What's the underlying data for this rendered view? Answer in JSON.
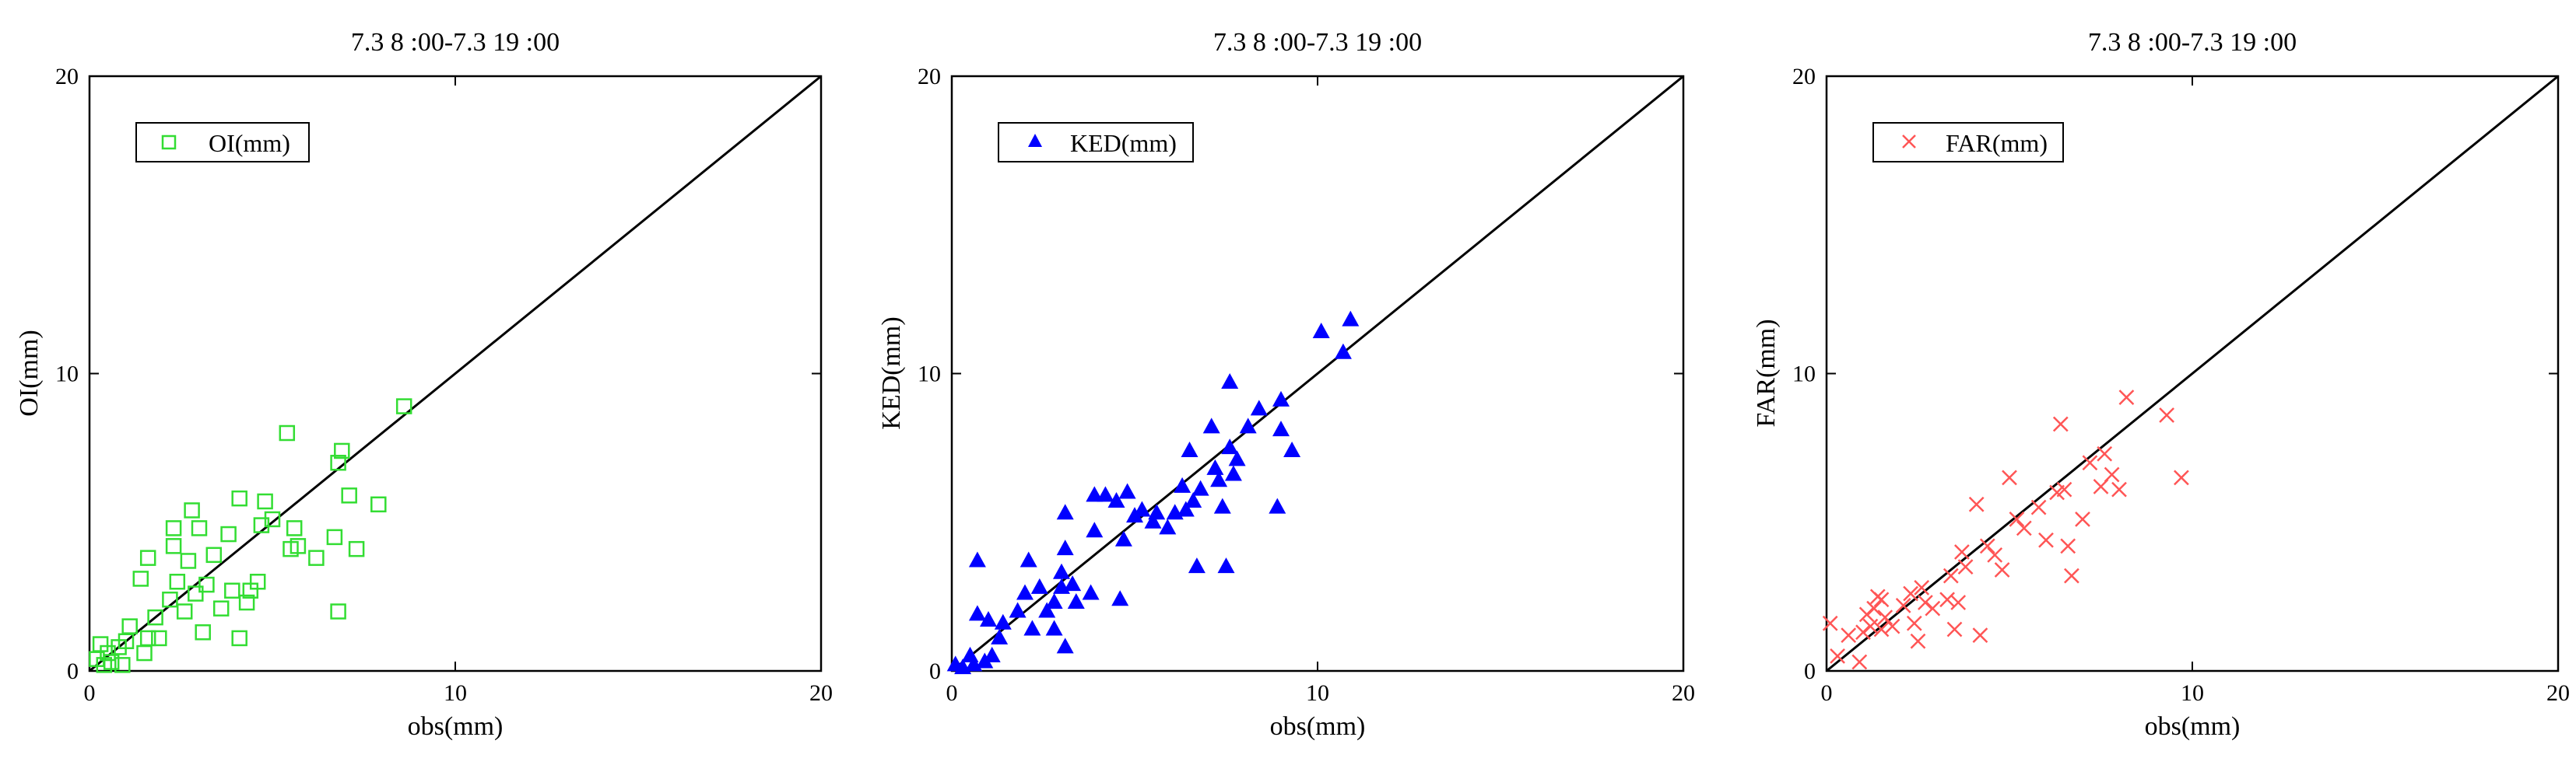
{
  "colors": {
    "axis": "#000000",
    "background": "#ffffff"
  },
  "chart_data": [
    {
      "type": "scatter",
      "title": "7.3 8 :00-7.3 19 :00",
      "xlabel": "obs(mm)",
      "ylabel": "OI(mm)",
      "xlim": [
        0,
        20
      ],
      "ylim": [
        0,
        20
      ],
      "xticks": [
        "0",
        "10",
        "20"
      ],
      "yticks": [
        "0",
        "10",
        "20"
      ],
      "reference_line": "1:1",
      "legend_position": "top-left",
      "series": [
        {
          "name": "OI(mm)",
          "marker": "open-square",
          "color": "#33dd33",
          "points": [
            [
              0.2,
              0.4
            ],
            [
              0.3,
              0.9
            ],
            [
              0.4,
              0.2
            ],
            [
              0.5,
              0.6
            ],
            [
              0.6,
              0.3
            ],
            [
              0.8,
              0.8
            ],
            [
              0.9,
              0.2
            ],
            [
              1.0,
              1.0
            ],
            [
              1.1,
              1.5
            ],
            [
              1.4,
              3.1
            ],
            [
              1.5,
              0.6
            ],
            [
              1.6,
              1.1
            ],
            [
              1.6,
              3.8
            ],
            [
              1.8,
              1.8
            ],
            [
              1.9,
              1.1
            ],
            [
              2.2,
              2.4
            ],
            [
              2.3,
              4.8
            ],
            [
              2.3,
              4.2
            ],
            [
              2.4,
              3.0
            ],
            [
              2.6,
              2.0
            ],
            [
              2.7,
              3.7
            ],
            [
              2.8,
              5.4
            ],
            [
              2.9,
              2.6
            ],
            [
              3.0,
              4.8
            ],
            [
              3.1,
              1.3
            ],
            [
              3.2,
              2.9
            ],
            [
              3.4,
              3.9
            ],
            [
              3.6,
              2.1
            ],
            [
              3.8,
              4.6
            ],
            [
              3.9,
              2.7
            ],
            [
              4.1,
              5.8
            ],
            [
              4.1,
              1.1
            ],
            [
              4.3,
              2.3
            ],
            [
              4.4,
              2.7
            ],
            [
              4.6,
              3.0
            ],
            [
              4.7,
              4.9
            ],
            [
              4.8,
              5.7
            ],
            [
              5.0,
              5.1
            ],
            [
              5.4,
              8.0
            ],
            [
              5.5,
              4.1
            ],
            [
              5.6,
              4.8
            ],
            [
              5.7,
              4.2
            ],
            [
              6.2,
              3.8
            ],
            [
              6.7,
              4.5
            ],
            [
              6.8,
              2.0
            ],
            [
              6.9,
              7.4
            ],
            [
              6.8,
              7.0
            ],
            [
              7.1,
              5.9
            ],
            [
              7.3,
              4.1
            ],
            [
              7.9,
              5.6
            ],
            [
              8.6,
              8.9
            ]
          ]
        }
      ]
    },
    {
      "type": "scatter",
      "title": "7.3 8 :00-7.3 19 :00",
      "xlabel": "obs(mm)",
      "ylabel": "KED(mm)",
      "xlim": [
        0,
        20
      ],
      "ylim": [
        0,
        20
      ],
      "xticks": [
        "0",
        "10",
        "20"
      ],
      "yticks": [
        "0",
        "10",
        "20"
      ],
      "reference_line": "1:1",
      "legend_position": "top-left",
      "series": [
        {
          "name": "KED(mm)",
          "marker": "filled-triangle",
          "color": "#0000ff",
          "points": [
            [
              0.1,
              0.2
            ],
            [
              0.3,
              0.1
            ],
            [
              0.5,
              0.5
            ],
            [
              0.6,
              0.2
            ],
            [
              0.7,
              1.9
            ],
            [
              0.7,
              3.7
            ],
            [
              0.9,
              0.3
            ],
            [
              1.0,
              1.7
            ],
            [
              1.1,
              0.5
            ],
            [
              1.3,
              1.1
            ],
            [
              1.4,
              1.6
            ],
            [
              1.8,
              2.0
            ],
            [
              2.0,
              2.6
            ],
            [
              2.1,
              3.7
            ],
            [
              2.2,
              1.4
            ],
            [
              2.4,
              2.8
            ],
            [
              2.6,
              2.0
            ],
            [
              2.8,
              1.4
            ],
            [
              2.8,
              2.3
            ],
            [
              3.0,
              2.8
            ],
            [
              3.0,
              3.3
            ],
            [
              3.1,
              4.1
            ],
            [
              3.1,
              5.3
            ],
            [
              3.1,
              0.8
            ],
            [
              3.3,
              2.9
            ],
            [
              3.4,
              2.3
            ],
            [
              3.8,
              2.6
            ],
            [
              3.9,
              4.7
            ],
            [
              3.9,
              5.9
            ],
            [
              4.2,
              5.9
            ],
            [
              4.5,
              5.7
            ],
            [
              4.6,
              2.4
            ],
            [
              4.7,
              4.4
            ],
            [
              4.8,
              6.0
            ],
            [
              5.0,
              5.2
            ],
            [
              5.2,
              5.4
            ],
            [
              5.5,
              5.0
            ],
            [
              5.6,
              5.3
            ],
            [
              5.9,
              4.8
            ],
            [
              6.1,
              5.3
            ],
            [
              6.3,
              6.2
            ],
            [
              6.4,
              5.4
            ],
            [
              6.5,
              7.4
            ],
            [
              6.6,
              5.7
            ],
            [
              6.7,
              3.5
            ],
            [
              6.8,
              6.1
            ],
            [
              7.1,
              8.2
            ],
            [
              7.2,
              6.8
            ],
            [
              7.3,
              6.4
            ],
            [
              7.4,
              5.5
            ],
            [
              7.5,
              3.5
            ],
            [
              7.6,
              7.5
            ],
            [
              7.6,
              9.7
            ],
            [
              7.7,
              6.6
            ],
            [
              7.8,
              7.1
            ],
            [
              8.1,
              8.2
            ],
            [
              8.4,
              8.8
            ],
            [
              8.9,
              5.5
            ],
            [
              9.0,
              8.1
            ],
            [
              9.0,
              9.1
            ],
            [
              9.3,
              7.4
            ],
            [
              10.1,
              11.4
            ],
            [
              10.7,
              10.7
            ],
            [
              10.9,
              11.8
            ]
          ]
        }
      ]
    },
    {
      "type": "scatter",
      "title": "7.3 8 :00-7.3 19 :00",
      "xlabel": "obs(mm)",
      "ylabel": "FAR(mm)",
      "xlim": [
        0,
        20
      ],
      "ylim": [
        0,
        20
      ],
      "xticks": [
        "0",
        "10",
        "20"
      ],
      "yticks": [
        "0",
        "10",
        "20"
      ],
      "reference_line": "1:1",
      "legend_position": "top-left",
      "series": [
        {
          "name": "FAR(mm)",
          "marker": "x",
          "color": "#ff5555",
          "points": [
            [
              0.1,
              1.6
            ],
            [
              0.3,
              0.5
            ],
            [
              0.6,
              1.2
            ],
            [
              0.9,
              0.3
            ],
            [
              1.0,
              1.3
            ],
            [
              1.1,
              1.9
            ],
            [
              1.2,
              1.5
            ],
            [
              1.3,
              2.1
            ],
            [
              1.4,
              2.5
            ],
            [
              1.5,
              2.4
            ],
            [
              1.5,
              1.4
            ],
            [
              1.6,
              1.8
            ],
            [
              1.8,
              1.5
            ],
            [
              2.1,
              2.2
            ],
            [
              2.3,
              2.6
            ],
            [
              2.4,
              1.6
            ],
            [
              2.5,
              1.0
            ],
            [
              2.6,
              2.8
            ],
            [
              2.7,
              2.3
            ],
            [
              2.9,
              2.1
            ],
            [
              3.3,
              2.4
            ],
            [
              3.4,
              3.2
            ],
            [
              3.5,
              1.4
            ],
            [
              3.6,
              2.3
            ],
            [
              3.7,
              4.0
            ],
            [
              3.8,
              3.5
            ],
            [
              4.1,
              5.6
            ],
            [
              4.2,
              1.2
            ],
            [
              4.4,
              4.2
            ],
            [
              4.6,
              3.9
            ],
            [
              4.8,
              3.4
            ],
            [
              5.0,
              6.5
            ],
            [
              5.2,
              5.1
            ],
            [
              5.4,
              4.8
            ],
            [
              5.8,
              5.5
            ],
            [
              6.0,
              4.4
            ],
            [
              6.3,
              6.0
            ],
            [
              6.4,
              8.3
            ],
            [
              6.5,
              6.1
            ],
            [
              6.6,
              4.2
            ],
            [
              6.7,
              3.2
            ],
            [
              7.0,
              5.1
            ],
            [
              7.2,
              7.0
            ],
            [
              7.5,
              6.2
            ],
            [
              7.6,
              7.3
            ],
            [
              7.8,
              6.6
            ],
            [
              8.0,
              6.1
            ],
            [
              8.2,
              9.2
            ],
            [
              9.3,
              8.6
            ],
            [
              9.7,
              6.5
            ]
          ]
        }
      ]
    }
  ]
}
